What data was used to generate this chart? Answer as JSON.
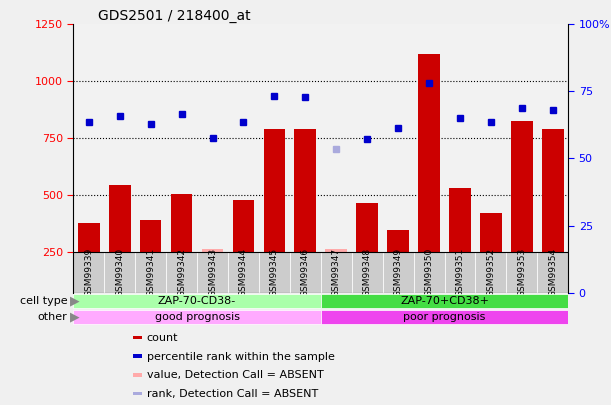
{
  "title": "GDS2501 / 218400_at",
  "samples": [
    "GSM99339",
    "GSM99340",
    "GSM99341",
    "GSM99342",
    "GSM99343",
    "GSM99344",
    "GSM99345",
    "GSM99346",
    "GSM99347",
    "GSM99348",
    "GSM99349",
    "GSM99350",
    "GSM99351",
    "GSM99352",
    "GSM99353",
    "GSM99354"
  ],
  "bar_values": [
    375,
    545,
    390,
    505,
    260,
    475,
    790,
    790,
    260,
    465,
    345,
    1120,
    530,
    420,
    825,
    790
  ],
  "bar_absent": [
    false,
    false,
    false,
    false,
    true,
    false,
    false,
    false,
    true,
    false,
    false,
    false,
    false,
    false,
    false,
    false
  ],
  "rank_values": [
    820,
    845,
    810,
    855,
    750,
    820,
    935,
    930,
    700,
    745,
    795,
    990,
    840,
    820,
    880,
    875
  ],
  "rank_absent": [
    false,
    false,
    false,
    false,
    false,
    false,
    false,
    false,
    true,
    false,
    false,
    false,
    false,
    false,
    false,
    false
  ],
  "ylim_left": [
    250,
    1250
  ],
  "ylim_right": [
    0,
    100
  ],
  "yticks_left": [
    250,
    500,
    750,
    1000,
    1250
  ],
  "yticks_right": [
    0,
    25,
    50,
    75,
    100
  ],
  "yticklabels_right": [
    "0",
    "25",
    "50",
    "75",
    "100%"
  ],
  "bar_color": "#cc0000",
  "bar_absent_color": "#ffaaaa",
  "rank_color": "#0000cc",
  "rank_absent_color": "#aaaadd",
  "plot_bg": "#ffffff",
  "xlabel_bg": "#cccccc",
  "cell_type_groups": [
    {
      "label": "ZAP-70-CD38-",
      "start": 0,
      "end": 8,
      "color": "#aaffaa"
    },
    {
      "label": "ZAP-70+CD38+",
      "start": 8,
      "end": 16,
      "color": "#44dd44"
    }
  ],
  "other_groups": [
    {
      "label": "good prognosis",
      "start": 0,
      "end": 8,
      "color": "#ffaaff"
    },
    {
      "label": "poor prognosis",
      "start": 8,
      "end": 16,
      "color": "#ee44ee"
    }
  ],
  "row_labels": [
    "cell type",
    "other"
  ],
  "arrow_color": "#888888",
  "legend_items": [
    {
      "color": "#cc0000",
      "label": "count"
    },
    {
      "color": "#0000cc",
      "label": "percentile rank within the sample"
    },
    {
      "color": "#ffaaaa",
      "label": "value, Detection Call = ABSENT"
    },
    {
      "color": "#aaaadd",
      "label": "rank, Detection Call = ABSENT"
    }
  ],
  "fig_bg": "#f0f0f0"
}
